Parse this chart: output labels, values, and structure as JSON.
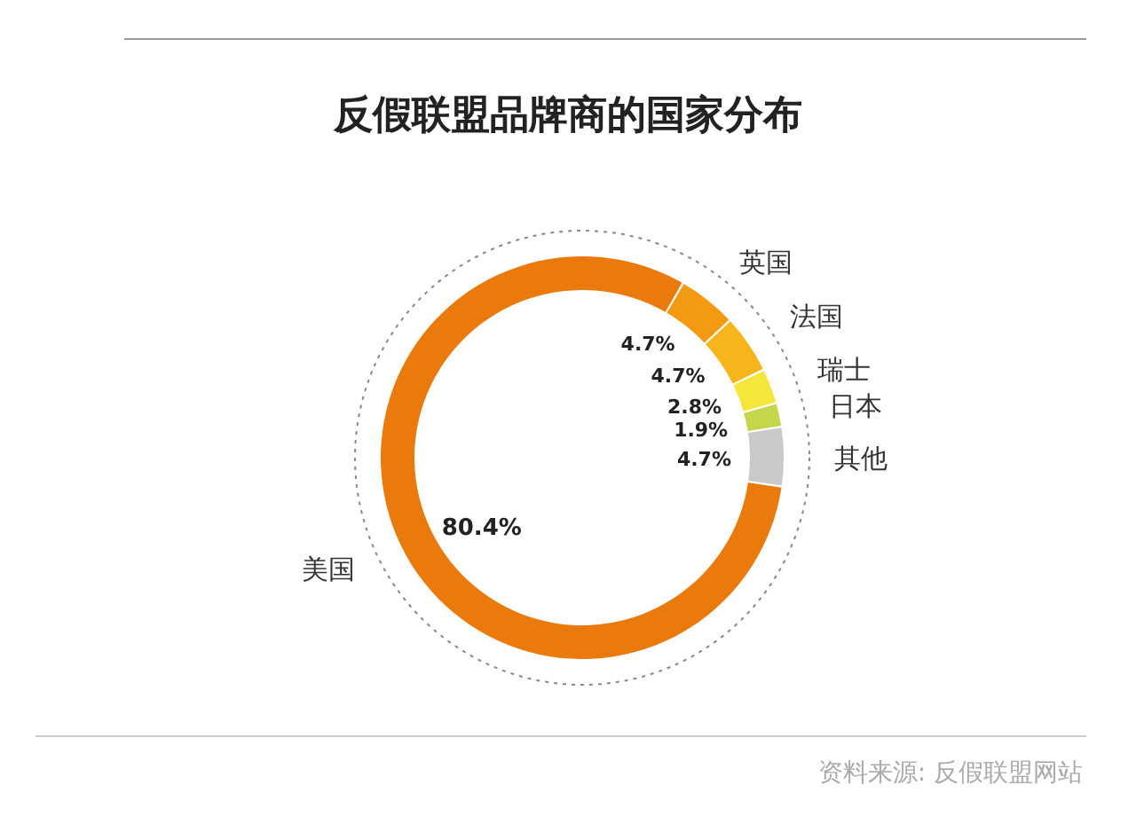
{
  "chart_data": {
    "type": "donut",
    "title": "反假联盟品牌商的国家分布",
    "categories": [
      "美国",
      "英国",
      "法国",
      "瑞士",
      "日本",
      "其他"
    ],
    "values": [
      80.4,
      4.7,
      4.7,
      2.8,
      1.9,
      4.7
    ],
    "colors": [
      "#ea7a0c",
      "#f39a12",
      "#f7b51c",
      "#f6e63a",
      "#c5d64a",
      "#c9c9c9"
    ],
    "value_labels": [
      "80.4%",
      "4.7%",
      "4.7%",
      "2.8%",
      "1.9%",
      "4.7%"
    ],
    "annotations": [
      "资料来源: 反假联盟网站"
    ],
    "legend": false
  }
}
